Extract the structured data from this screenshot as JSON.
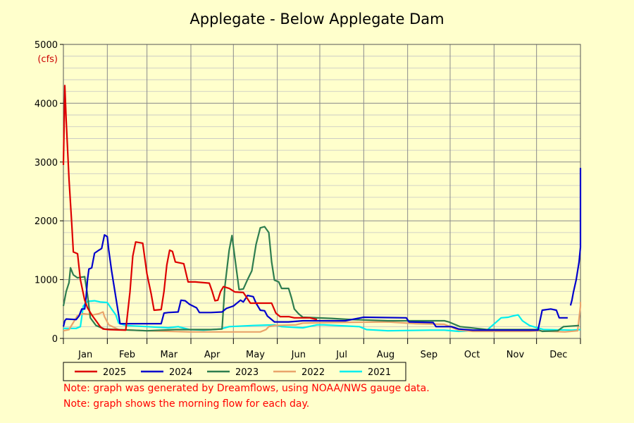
{
  "chart_data": {
    "type": "line",
    "title": "Applegate - Below Applegate Dam",
    "ylabel": "(cfs)",
    "xlabel": "",
    "ylim": [
      0,
      5000
    ],
    "yticks": [
      0,
      1000,
      2000,
      3000,
      4000,
      5000
    ],
    "xlim": [
      1,
      366
    ],
    "month_labels": [
      "Jan",
      "Feb",
      "Mar",
      "Apr",
      "May",
      "Jun",
      "Jul",
      "Aug",
      "Sep",
      "Oct",
      "Nov",
      "Dec"
    ],
    "month_starts": [
      1,
      32,
      60,
      91,
      121,
      152,
      182,
      213,
      244,
      274,
      305,
      335
    ],
    "grid": true,
    "legend_position": "bottom",
    "x_unit": "day of year",
    "series": [
      {
        "name": "2025",
        "color": "#DD0000",
        "points": [
          [
            1,
            2950
          ],
          [
            2,
            4300
          ],
          [
            3,
            3700
          ],
          [
            5,
            2700
          ],
          [
            7,
            1900
          ],
          [
            8,
            1470
          ],
          [
            11,
            1440
          ],
          [
            13,
            1000
          ],
          [
            16,
            650
          ],
          [
            18,
            520
          ],
          [
            21,
            400
          ],
          [
            24,
            300
          ],
          [
            27,
            200
          ],
          [
            29,
            160
          ],
          [
            33,
            150
          ],
          [
            45,
            140
          ],
          [
            48,
            790
          ],
          [
            50,
            1400
          ],
          [
            52,
            1640
          ],
          [
            57,
            1620
          ],
          [
            60,
            1100
          ],
          [
            63,
            750
          ],
          [
            65,
            480
          ],
          [
            70,
            490
          ],
          [
            72,
            800
          ],
          [
            74,
            1250
          ],
          [
            76,
            1500
          ],
          [
            78,
            1480
          ],
          [
            80,
            1300
          ],
          [
            86,
            1270
          ],
          [
            89,
            960
          ],
          [
            94,
            960
          ],
          [
            104,
            940
          ],
          [
            106,
            800
          ],
          [
            108,
            640
          ],
          [
            110,
            650
          ],
          [
            112,
            800
          ],
          [
            114,
            880
          ],
          [
            118,
            850
          ],
          [
            122,
            790
          ],
          [
            128,
            780
          ],
          [
            130,
            710
          ],
          [
            133,
            600
          ],
          [
            148,
            600
          ],
          [
            151,
            430
          ],
          [
            154,
            370
          ],
          [
            160,
            370
          ],
          [
            164,
            350
          ],
          [
            175,
            350
          ],
          [
            180,
            320
          ]
        ]
      },
      {
        "name": "2024",
        "color": "#0000CC",
        "points": [
          [
            1,
            200
          ],
          [
            2,
            300
          ],
          [
            3,
            330
          ],
          [
            10,
            320
          ],
          [
            12,
            380
          ],
          [
            14,
            500
          ],
          [
            16,
            500
          ],
          [
            17,
            700
          ],
          [
            18,
            1000
          ],
          [
            19,
            1180
          ],
          [
            21,
            1200
          ],
          [
            23,
            1450
          ],
          [
            26,
            1500
          ],
          [
            28,
            1530
          ],
          [
            30,
            1760
          ],
          [
            32,
            1730
          ],
          [
            33,
            1500
          ],
          [
            35,
            1150
          ],
          [
            37,
            850
          ],
          [
            39,
            550
          ],
          [
            41,
            250
          ],
          [
            60,
            250
          ],
          [
            70,
            250
          ],
          [
            72,
            430
          ],
          [
            75,
            440
          ],
          [
            82,
            450
          ],
          [
            84,
            650
          ],
          [
            87,
            640
          ],
          [
            90,
            580
          ],
          [
            95,
            520
          ],
          [
            97,
            440
          ],
          [
            105,
            440
          ],
          [
            113,
            450
          ],
          [
            116,
            510
          ],
          [
            121,
            550
          ],
          [
            126,
            650
          ],
          [
            128,
            620
          ],
          [
            131,
            730
          ],
          [
            135,
            710
          ],
          [
            137,
            600
          ],
          [
            140,
            480
          ],
          [
            143,
            470
          ],
          [
            145,
            380
          ],
          [
            150,
            280
          ],
          [
            160,
            280
          ],
          [
            170,
            300
          ],
          [
            200,
            300
          ],
          [
            213,
            360
          ],
          [
            243,
            350
          ],
          [
            245,
            280
          ],
          [
            262,
            270
          ],
          [
            264,
            200
          ],
          [
            275,
            200
          ],
          [
            280,
            160
          ],
          [
            290,
            140
          ],
          [
            300,
            140
          ],
          [
            330,
            140
          ],
          [
            336,
            140
          ],
          [
            339,
            480
          ],
          [
            345,
            500
          ],
          [
            349,
            480
          ],
          [
            351,
            350
          ],
          [
            357,
            350
          ],
          [
            358,
            null
          ],
          [
            359,
            560
          ],
          [
            360,
            650
          ],
          [
            361,
            780
          ],
          [
            363,
            1000
          ],
          [
            365,
            1300
          ],
          [
            367,
            1550
          ],
          [
            369,
            2000
          ],
          [
            371,
            2060
          ],
          [
            373,
            2900
          ]
        ]
      },
      {
        "name": "2023",
        "color": "#2E7D4F",
        "points": [
          [
            1,
            550
          ],
          [
            3,
            800
          ],
          [
            5,
            950
          ],
          [
            6,
            1200
          ],
          [
            8,
            1080
          ],
          [
            11,
            1030
          ],
          [
            16,
            1050
          ],
          [
            18,
            740
          ],
          [
            20,
            350
          ],
          [
            24,
            220
          ],
          [
            30,
            160
          ],
          [
            60,
            130
          ],
          [
            70,
            140
          ],
          [
            80,
            150
          ],
          [
            105,
            150
          ],
          [
            113,
            160
          ],
          [
            115,
            880
          ],
          [
            118,
            1500
          ],
          [
            120,
            1750
          ],
          [
            122,
            1380
          ],
          [
            125,
            830
          ],
          [
            128,
            840
          ],
          [
            131,
            1000
          ],
          [
            134,
            1150
          ],
          [
            137,
            1600
          ],
          [
            140,
            1880
          ],
          [
            143,
            1900
          ],
          [
            146,
            1800
          ],
          [
            148,
            1300
          ],
          [
            150,
            990
          ],
          [
            153,
            960
          ],
          [
            155,
            850
          ],
          [
            160,
            850
          ],
          [
            162,
            690
          ],
          [
            164,
            500
          ],
          [
            167,
            420
          ],
          [
            170,
            360
          ],
          [
            190,
            340
          ],
          [
            205,
            320
          ],
          [
            230,
            300
          ],
          [
            270,
            300
          ],
          [
            273,
            280
          ],
          [
            281,
            200
          ],
          [
            300,
            150
          ],
          [
            336,
            150
          ],
          [
            339,
            120
          ],
          [
            350,
            130
          ],
          [
            354,
            200
          ],
          [
            365,
            220
          ]
        ]
      },
      {
        "name": "2022",
        "color": "#E9A46B",
        "points": [
          [
            1,
            130
          ],
          [
            5,
            150
          ],
          [
            11,
            390
          ],
          [
            15,
            420
          ],
          [
            22,
            400
          ],
          [
            26,
            420
          ],
          [
            29,
            450
          ],
          [
            30,
            370
          ],
          [
            33,
            230
          ],
          [
            40,
            150
          ],
          [
            60,
            130
          ],
          [
            90,
            110
          ],
          [
            100,
            110
          ],
          [
            140,
            110
          ],
          [
            144,
            150
          ],
          [
            146,
            200
          ],
          [
            150,
            220
          ],
          [
            165,
            230
          ],
          [
            170,
            260
          ],
          [
            190,
            270
          ],
          [
            230,
            280
          ],
          [
            250,
            250
          ],
          [
            270,
            240
          ],
          [
            280,
            140
          ],
          [
            290,
            120
          ],
          [
            330,
            120
          ],
          [
            336,
            130
          ],
          [
            345,
            120
          ],
          [
            355,
            110
          ],
          [
            364,
            130
          ],
          [
            366,
            550
          ],
          [
            368,
            620
          ]
        ]
      },
      {
        "name": "2021",
        "color": "#00EEEE",
        "points": [
          [
            1,
            170
          ],
          [
            10,
            170
          ],
          [
            13,
            200
          ],
          [
            15,
            550
          ],
          [
            18,
            630
          ],
          [
            23,
            640
          ],
          [
            27,
            620
          ],
          [
            32,
            610
          ],
          [
            35,
            500
          ],
          [
            38,
            400
          ],
          [
            40,
            260
          ],
          [
            45,
            220
          ],
          [
            60,
            200
          ],
          [
            75,
            180
          ],
          [
            82,
            200
          ],
          [
            90,
            150
          ],
          [
            100,
            140
          ],
          [
            112,
            160
          ],
          [
            118,
            200
          ],
          [
            135,
            220
          ],
          [
            150,
            230
          ],
          [
            155,
            200
          ],
          [
            170,
            180
          ],
          [
            180,
            230
          ],
          [
            185,
            230
          ],
          [
            210,
            200
          ],
          [
            215,
            150
          ],
          [
            230,
            130
          ],
          [
            260,
            140
          ],
          [
            270,
            140
          ],
          [
            280,
            120
          ],
          [
            300,
            140
          ],
          [
            310,
            350
          ],
          [
            315,
            360
          ],
          [
            318,
            380
          ],
          [
            322,
            400
          ],
          [
            325,
            300
          ],
          [
            330,
            220
          ],
          [
            340,
            150
          ],
          [
            360,
            140
          ],
          [
            368,
            150
          ]
        ]
      }
    ]
  },
  "notes": [
    "Note: graph was generated by Dreamflows, using NOAA/NWS gauge data.",
    "Note: graph shows the morning flow for each day."
  ]
}
